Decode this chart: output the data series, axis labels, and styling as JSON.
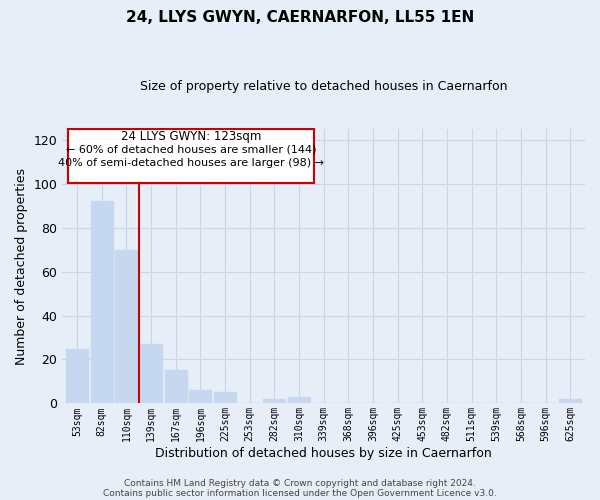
{
  "title": "24, LLYS GWYN, CAERNARFON, LL55 1EN",
  "subtitle": "Size of property relative to detached houses in Caernarfon",
  "xlabel": "Distribution of detached houses by size in Caernarfon",
  "ylabel": "Number of detached properties",
  "bar_labels": [
    "53sqm",
    "82sqm",
    "110sqm",
    "139sqm",
    "167sqm",
    "196sqm",
    "225sqm",
    "253sqm",
    "282sqm",
    "310sqm",
    "339sqm",
    "368sqm",
    "396sqm",
    "425sqm",
    "453sqm",
    "482sqm",
    "511sqm",
    "539sqm",
    "568sqm",
    "596sqm",
    "625sqm"
  ],
  "bar_values": [
    25,
    92,
    70,
    27,
    15,
    6,
    5,
    0,
    2,
    3,
    0,
    0,
    0,
    0,
    0,
    0,
    0,
    0,
    0,
    0,
    2
  ],
  "bar_color": "#c5d8f0",
  "red_line_x": 2.5,
  "annotation_title": "24 LLYS GWYN: 123sqm",
  "annotation_line1": "← 60% of detached houses are smaller (144)",
  "annotation_line2": "40% of semi-detached houses are larger (98) →",
  "annotation_box_color": "#ffffff",
  "annotation_box_edge": "#cc0000",
  "ylim": [
    0,
    125
  ],
  "yticks": [
    0,
    20,
    40,
    60,
    80,
    100,
    120
  ],
  "footer1": "Contains HM Land Registry data © Crown copyright and database right 2024.",
  "footer2": "Contains public sector information licensed under the Open Government Licence v3.0.",
  "background_color": "#e8eef8",
  "grid_color": "#c8d4e8",
  "title_fontsize": 11,
  "subtitle_fontsize": 9
}
